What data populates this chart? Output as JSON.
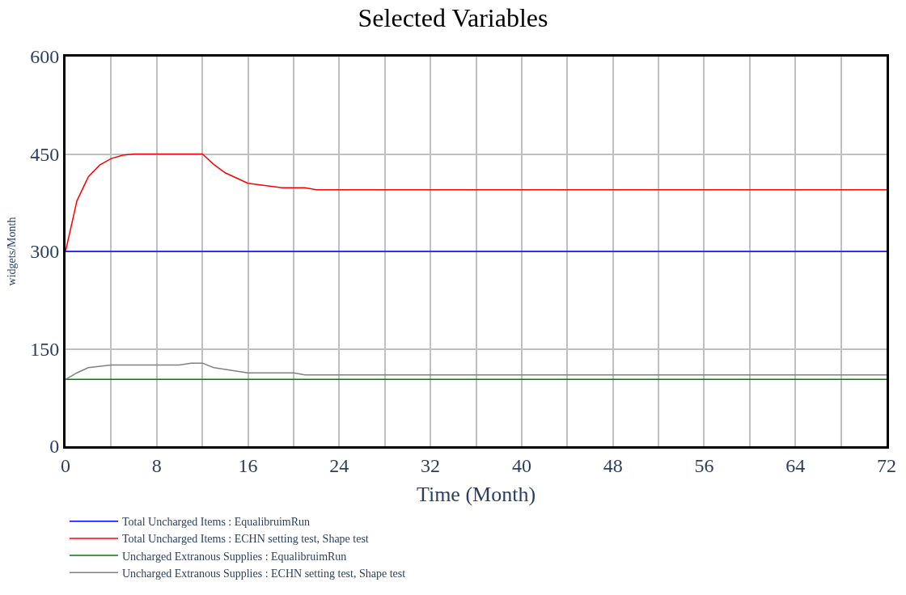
{
  "chart_data": {
    "type": "line",
    "title": "Selected Variables",
    "xlabel": "Time (Month)",
    "ylabel": "widgets/Month",
    "xlim": [
      0,
      72
    ],
    "xticks": [
      0,
      {
        "value": 4,
        "label": null
      },
      8,
      {
        "value": 12,
        "label": null
      },
      16,
      {
        "value": 20,
        "label": null
      },
      24,
      {
        "value": 28,
        "label": null
      },
      32,
      {
        "value": 36,
        "label": null
      },
      40,
      {
        "value": 44,
        "label": null
      },
      48,
      {
        "value": 52,
        "label": null
      },
      56,
      {
        "value": 60,
        "label": null
      },
      64,
      {
        "value": 68,
        "label": null
      },
      72
    ],
    "ylim": [
      0,
      600
    ],
    "yticks": [
      0,
      150,
      300,
      450,
      600
    ],
    "grid": true,
    "legend": "bottom",
    "line_style": "solid",
    "series": [
      {
        "name": "Total Uncharged Items : EqualibruimRun",
        "color": "#0000ff",
        "x": [
          0,
          72
        ],
        "values": [
          300,
          300
        ]
      },
      {
        "name": "Total Uncharged Items : ECHN setting test, Shape test",
        "color": "#ff0000",
        "x": [
          0,
          1,
          2,
          3,
          4,
          5,
          6,
          12,
          13,
          14,
          16,
          19,
          21,
          22,
          72
        ],
        "values": [
          300,
          378,
          415,
          433,
          443,
          448,
          450,
          450,
          434,
          421,
          405,
          398,
          398,
          395,
          395
        ]
      },
      {
        "name": "Uncharged Extranous Supplies : EqualibruimRun",
        "color": "#008000",
        "x": [
          0,
          72
        ],
        "values": [
          103,
          103
        ]
      },
      {
        "name": "Uncharged Extranous Supplies : ECHN setting test, Shape test",
        "color": "#808080",
        "x": [
          0,
          1,
          2,
          4,
          10,
          11,
          12,
          13,
          16,
          20,
          21,
          72
        ],
        "values": [
          103,
          113,
          121,
          125,
          125,
          128,
          128,
          121,
          113,
          113,
          110,
          110
        ]
      }
    ]
  }
}
